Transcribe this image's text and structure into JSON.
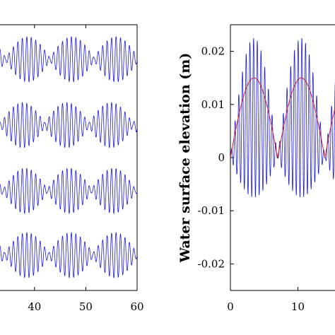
{
  "chart_data": [
    {
      "type": "line",
      "panel": "left",
      "xlabel": "",
      "ylabel": "",
      "xlim": [
        33,
        60
      ],
      "xticks": [
        40,
        50,
        60
      ],
      "xtick_labels": [
        "40",
        "50",
        "60"
      ],
      "grid": false,
      "series_color": "#1a1adb",
      "description_of_traces": "four stacked wave-group traces",
      "series": [
        {
          "carrier_period": 0.87,
          "envelope_period": 8.6,
          "amplitude": 1.0,
          "min_ratio": 0.08,
          "phase_offset": 0.0,
          "x": [
            33,
            60
          ]
        },
        {
          "carrier_period": 0.87,
          "envelope_period": 8.6,
          "amplitude": 1.0,
          "min_ratio": 0.1,
          "phase_offset": 1.0,
          "x": [
            33,
            60
          ]
        },
        {
          "carrier_period": 0.87,
          "envelope_period": 8.6,
          "amplitude": 1.0,
          "min_ratio": 0.08,
          "phase_offset": 0.5,
          "x": [
            33,
            60
          ]
        },
        {
          "carrier_period": 0.87,
          "envelope_period": 8.6,
          "amplitude": 1.0,
          "min_ratio": 0.1,
          "phase_offset": 0.2,
          "x": [
            33,
            60
          ]
        }
      ]
    },
    {
      "type": "line",
      "panel": "right",
      "xlabel": "",
      "ylabel": "Water surface elevation (m)",
      "xlim": [
        0,
        22
      ],
      "ylim": [
        -0.025,
        0.025
      ],
      "xticks": [
        0,
        10
      ],
      "xtick_labels": [
        "0",
        "10"
      ],
      "yticks": [
        0.02,
        0.01,
        0,
        -0.01,
        -0.02
      ],
      "ytick_labels": [
        "0.02",
        "0.01",
        "0",
        "-0.01",
        "-0.02"
      ],
      "grid": false,
      "series": [
        {
          "color": "#1a1adb",
          "carrier_period": 0.55,
          "envelope_period": 7.0,
          "peak": 0.015,
          "x": [
            0,
            22
          ]
        },
        {
          "color": "#d42020",
          "style": "envelope",
          "envelope_period": 7.0,
          "peak": 0.015,
          "x": [
            0,
            22
          ]
        }
      ]
    }
  ]
}
